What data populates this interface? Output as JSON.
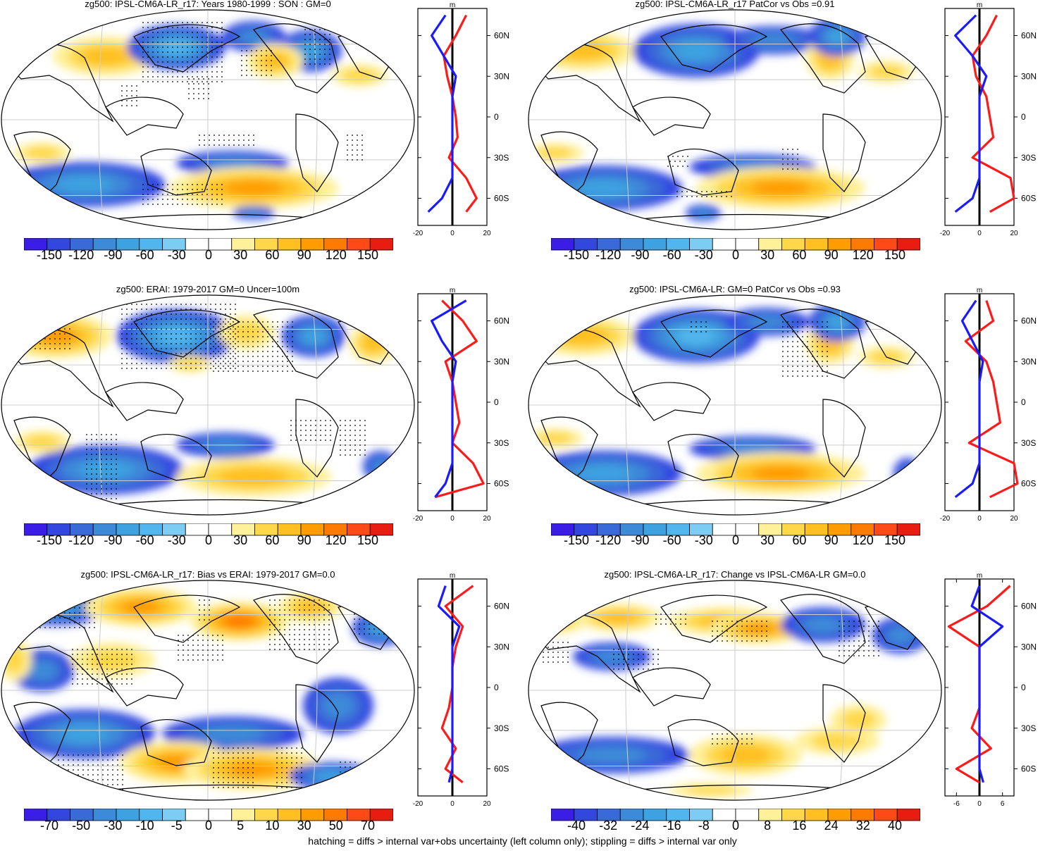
{
  "footer": "hatching = diffs > internal var+obs uncertainty (left column only); stippling = diffs > internal var only",
  "zonal_unit": "m",
  "lat_labels": [
    "60N",
    "30N",
    "0",
    "30S",
    "60S"
  ],
  "palette": [
    "#3a1ee8",
    "#3246e0",
    "#3a6ad8",
    "#3c8ad8",
    "#3ea2e0",
    "#52b6ee",
    "#7cccf4",
    "#ffffff",
    "#ffffff",
    "#fff09a",
    "#ffd84a",
    "#ffc020",
    "#ff9c00",
    "#ff7a00",
    "#ff4a18",
    "#e81c10"
  ],
  "panels": [
    {
      "title": "zg500: IPSL-CM6A-LR_r17: Years 1980-1999 : SON : GM=0",
      "colorbar": [
        "-150",
        "-120",
        "-90",
        "-60",
        "-30",
        "0",
        "30",
        "60",
        "90",
        "120",
        "150"
      ],
      "zonal_ticks": [
        "-20",
        "0",
        "20"
      ]
    },
    {
      "title": "zg500: IPSL-CM6A-LR_r17 PatCor vs Obs =0.91",
      "colorbar": [
        "-150",
        "-120",
        "-90",
        "-60",
        "-30",
        "0",
        "30",
        "60",
        "90",
        "120",
        "150"
      ],
      "zonal_ticks": [
        "-20",
        "0",
        "20"
      ]
    },
    {
      "title": "zg500: ERAI: 1979-2017 GM=0 Uncer=100m",
      "colorbar": [
        "-150",
        "-120",
        "-90",
        "-60",
        "-30",
        "0",
        "30",
        "60",
        "90",
        "120",
        "150"
      ],
      "zonal_ticks": [
        "-20",
        "0",
        "20"
      ]
    },
    {
      "title": "zg500: IPSL-CM6A-LR: GM=0 PatCor vs Obs =0.93",
      "colorbar": [
        "-150",
        "-120",
        "-90",
        "-60",
        "-30",
        "0",
        "30",
        "60",
        "90",
        "120",
        "150"
      ],
      "zonal_ticks": [
        "-20",
        "0",
        "20"
      ]
    },
    {
      "title": "zg500: IPSL-CM6A-LR_r17: Bias vs ERAI: 1979-2017  GM=0.0",
      "colorbar": [
        "-70",
        "-50",
        "-30",
        "-10",
        "-5",
        "0",
        "5",
        "10",
        "30",
        "50",
        "70"
      ],
      "zonal_ticks": [
        "-20",
        "0",
        "20"
      ]
    },
    {
      "title": "zg500: IPSL-CM6A-LR_r17: Change vs IPSL-CM6A-LR GM=0.0",
      "colorbar": [
        "-40",
        "-32",
        "-24",
        "-16",
        "-8",
        "0",
        "8",
        "16",
        "24",
        "32",
        "40"
      ],
      "zonal_ticks": [
        "-6",
        "0",
        "6"
      ]
    }
  ],
  "chart_data": [
    {
      "type": "heatmap",
      "title": "zg500: IPSL-CM6A-LR_r17: Years 1980-1999 : SON : GM=0",
      "xlabel": "",
      "ylabel": "",
      "zonal_profile": {
        "lat": [
          75,
          60,
          45,
          30,
          15,
          0,
          -15,
          -30,
          -45,
          -60,
          -70
        ],
        "series": [
          {
            "name": "red",
            "values": [
              8,
              2,
              -5,
              -3,
              0,
              2,
              3,
              -2,
              8,
              14,
              8
            ]
          },
          {
            "name": "blue",
            "values": [
              -4,
              -12,
              -5,
              2,
              0,
              0,
              0,
              0,
              0,
              -6,
              -14
            ]
          }
        ],
        "xlim": [
          -20,
          20
        ],
        "unit": "m"
      }
    },
    {
      "type": "heatmap",
      "title": "zg500: IPSL-CM6A-LR_r17 PatCor vs Obs =0.91",
      "xlabel": "",
      "ylabel": "",
      "zonal_profile": {
        "lat": [
          75,
          60,
          45,
          30,
          15,
          0,
          -15,
          -30,
          -45,
          -60,
          -70
        ],
        "series": [
          {
            "name": "red",
            "values": [
              10,
              4,
              -4,
              -2,
              4,
              6,
              8,
              -4,
              18,
              20,
              6
            ]
          },
          {
            "name": "blue",
            "values": [
              -2,
              -14,
              -4,
              4,
              0,
              0,
              0,
              0,
              0,
              -4,
              -14
            ]
          }
        ],
        "xlim": [
          -20,
          20
        ],
        "unit": "m"
      }
    },
    {
      "type": "heatmap",
      "title": "zg500: ERAI: 1979-2017 GM=0 Uncer=100m",
      "xlabel": "",
      "ylabel": "",
      "zonal_profile": {
        "lat": [
          75,
          60,
          45,
          30,
          15,
          0,
          -15,
          -30,
          -45,
          -60,
          -70
        ],
        "series": [
          {
            "name": "red",
            "values": [
              -6,
              6,
              14,
              -4,
              0,
              2,
              4,
              0,
              12,
              18,
              -10
            ]
          },
          {
            "name": "blue",
            "values": [
              8,
              -12,
              -6,
              2,
              0,
              0,
              0,
              0,
              0,
              -4,
              -10
            ]
          }
        ],
        "xlim": [
          -20,
          20
        ],
        "unit": "m"
      }
    },
    {
      "type": "heatmap",
      "title": "zg500: IPSL-CM6A-LR: GM=0 PatCor vs Obs =0.93",
      "xlabel": "",
      "ylabel": "",
      "zonal_profile": {
        "lat": [
          75,
          60,
          45,
          30,
          15,
          0,
          -15,
          -30,
          -45,
          -60,
          -70
        ],
        "series": [
          {
            "name": "red",
            "values": [
              4,
              8,
              -8,
              4,
              8,
              10,
              12,
              -6,
              20,
              22,
              6
            ]
          },
          {
            "name": "blue",
            "values": [
              -2,
              -10,
              -4,
              2,
              0,
              0,
              0,
              0,
              0,
              -4,
              -14
            ]
          }
        ],
        "xlim": [
          -20,
          20
        ],
        "unit": "m"
      }
    },
    {
      "type": "heatmap",
      "title": "zg500: IPSL-CM6A-LR_r17: Bias vs ERAI: 1979-2017  GM=0.0",
      "xlabel": "",
      "ylabel": "",
      "zonal_profile": {
        "lat": [
          75,
          60,
          45,
          30,
          15,
          0,
          -15,
          -30,
          -45,
          -60,
          -70
        ],
        "series": [
          {
            "name": "red",
            "values": [
              12,
              -4,
              6,
              2,
              0,
              0,
              -2,
              -6,
              2,
              -4,
              6
            ]
          },
          {
            "name": "blue",
            "values": [
              -4,
              -8,
              4,
              0,
              0,
              0,
              0,
              0,
              0,
              0,
              -2
            ]
          }
        ],
        "xlim": [
          -20,
          20
        ],
        "unit": "m"
      }
    },
    {
      "type": "heatmap",
      "title": "zg500: IPSL-CM6A-LR_r17: Change vs IPSL-CM6A-LR GM=0.0",
      "xlabel": "",
      "ylabel": "",
      "zonal_profile": {
        "lat": [
          75,
          60,
          45,
          30,
          15,
          0,
          -15,
          -30,
          -45,
          -60,
          -70
        ],
        "series": [
          {
            "name": "red",
            "values": [
              8,
              2,
              -8,
              0,
              0,
              0,
              0,
              -2,
              3,
              -6,
              0
            ]
          },
          {
            "name": "blue",
            "values": [
              0,
              -2,
              6,
              0,
              0,
              0,
              0,
              0,
              0,
              0,
              1
            ]
          }
        ],
        "xlim": [
          -9,
          9
        ],
        "unit": "m"
      }
    }
  ]
}
